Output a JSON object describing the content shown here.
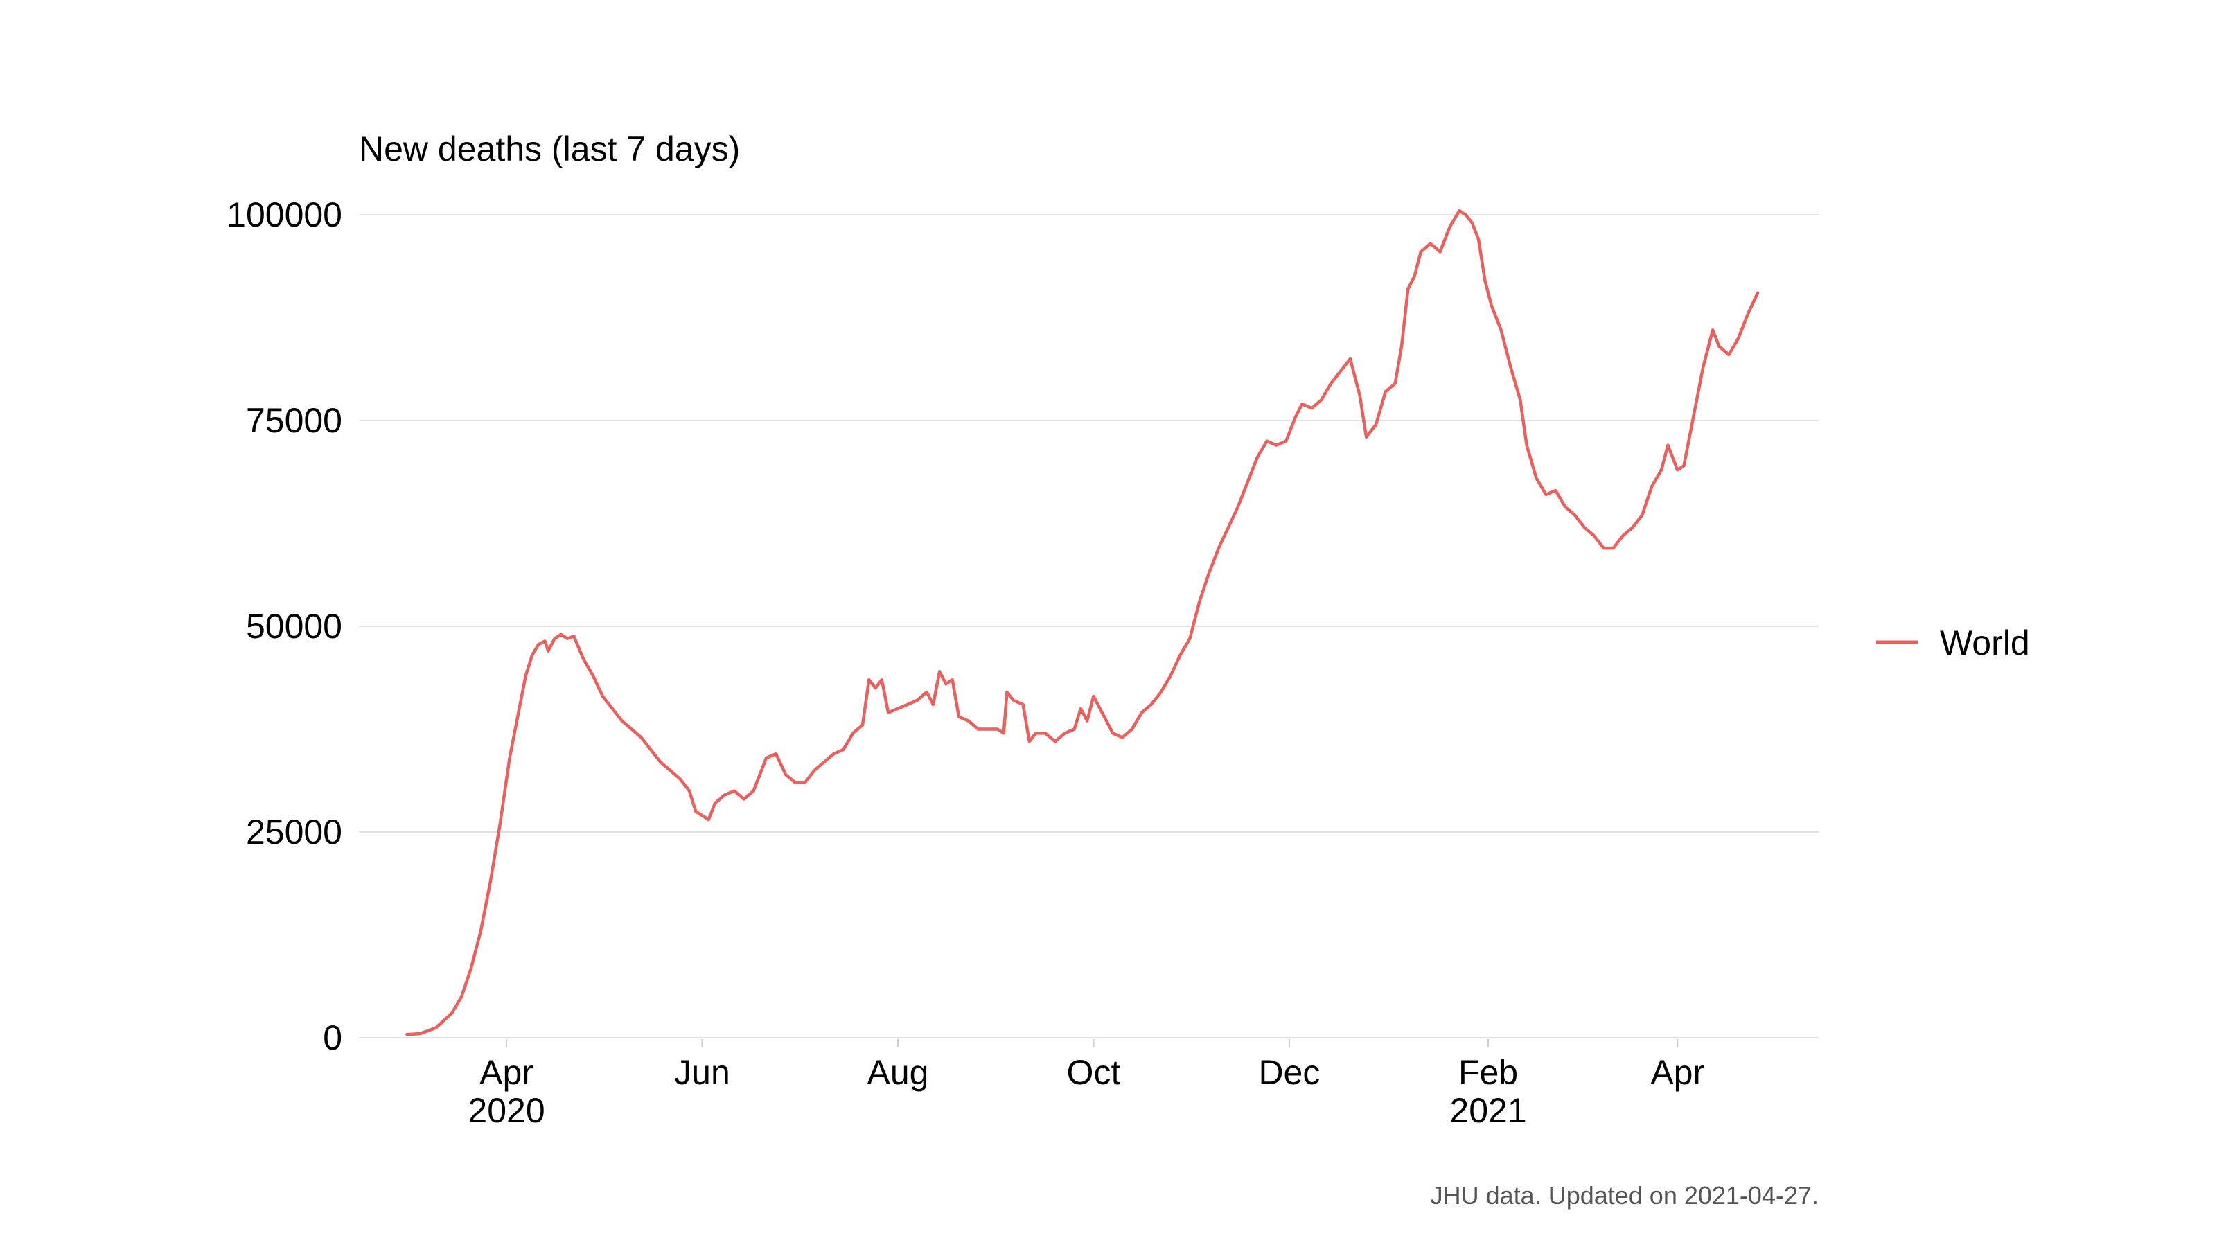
{
  "chart_data": {
    "type": "line",
    "title": "",
    "ylabel": "New deaths (last 7 days)",
    "xlabel": "",
    "ylim": [
      0,
      100000
    ],
    "yticks": [
      0,
      25000,
      50000,
      75000,
      100000
    ],
    "ytick_labels": [
      "0",
      "25000",
      "50000",
      "75000",
      "100000"
    ],
    "xlim": [
      "2020-02-15",
      "2021-05-15"
    ],
    "xticks": [
      {
        "date": "2020-04-01",
        "label": [
          "Apr",
          "2020"
        ]
      },
      {
        "date": "2020-06-01",
        "label": [
          "Jun"
        ]
      },
      {
        "date": "2020-08-01",
        "label": [
          "Aug"
        ]
      },
      {
        "date": "2020-10-01",
        "label": [
          "Oct"
        ]
      },
      {
        "date": "2020-12-01",
        "label": [
          "Dec"
        ]
      },
      {
        "date": "2021-02-01",
        "label": [
          "Feb",
          "2021"
        ]
      },
      {
        "date": "2021-04-01",
        "label": [
          "Apr"
        ]
      }
    ],
    "grid": true,
    "legend_position": "right",
    "series": [
      {
        "name": "World",
        "color": "#E8615E",
        "points": [
          [
            "2020-03-01",
            400
          ],
          [
            "2020-03-05",
            500
          ],
          [
            "2020-03-10",
            1200
          ],
          [
            "2020-03-15",
            3000
          ],
          [
            "2020-03-18",
            5000
          ],
          [
            "2020-03-21",
            8500
          ],
          [
            "2020-03-24",
            13000
          ],
          [
            "2020-03-27",
            19000
          ],
          [
            "2020-03-30",
            26000
          ],
          [
            "2020-04-02",
            34000
          ],
          [
            "2020-04-05",
            40000
          ],
          [
            "2020-04-07",
            44000
          ],
          [
            "2020-04-09",
            46500
          ],
          [
            "2020-04-11",
            47800
          ],
          [
            "2020-04-13",
            48200
          ],
          [
            "2020-04-14",
            47000
          ],
          [
            "2020-04-16",
            48500
          ],
          [
            "2020-04-18",
            49000
          ],
          [
            "2020-04-20",
            48500
          ],
          [
            "2020-04-22",
            48800
          ],
          [
            "2020-04-25",
            46000
          ],
          [
            "2020-04-28",
            44000
          ],
          [
            "2020-05-01",
            41500
          ],
          [
            "2020-05-04",
            40000
          ],
          [
            "2020-05-07",
            38500
          ],
          [
            "2020-05-10",
            37500
          ],
          [
            "2020-05-13",
            36500
          ],
          [
            "2020-05-16",
            35000
          ],
          [
            "2020-05-19",
            33500
          ],
          [
            "2020-05-22",
            32500
          ],
          [
            "2020-05-25",
            31500
          ],
          [
            "2020-05-28",
            30000
          ],
          [
            "2020-05-30",
            27500
          ],
          [
            "2020-06-01",
            27000
          ],
          [
            "2020-06-03",
            26500
          ],
          [
            "2020-06-05",
            28500
          ],
          [
            "2020-06-08",
            29500
          ],
          [
            "2020-06-11",
            30000
          ],
          [
            "2020-06-14",
            29000
          ],
          [
            "2020-06-17",
            30000
          ],
          [
            "2020-06-19",
            32000
          ],
          [
            "2020-06-21",
            34000
          ],
          [
            "2020-06-24",
            34500
          ],
          [
            "2020-06-27",
            32000
          ],
          [
            "2020-06-30",
            31000
          ],
          [
            "2020-07-03",
            31000
          ],
          [
            "2020-07-06",
            32500
          ],
          [
            "2020-07-09",
            33500
          ],
          [
            "2020-07-12",
            34500
          ],
          [
            "2020-07-15",
            35000
          ],
          [
            "2020-07-18",
            37000
          ],
          [
            "2020-07-21",
            38000
          ],
          [
            "2020-07-23",
            43500
          ],
          [
            "2020-07-25",
            42500
          ],
          [
            "2020-07-27",
            43500
          ],
          [
            "2020-07-29",
            39500
          ],
          [
            "2020-08-01",
            40000
          ],
          [
            "2020-08-04",
            40500
          ],
          [
            "2020-08-07",
            41000
          ],
          [
            "2020-08-10",
            42000
          ],
          [
            "2020-08-12",
            40500
          ],
          [
            "2020-08-14",
            44500
          ],
          [
            "2020-08-16",
            43000
          ],
          [
            "2020-08-18",
            43500
          ],
          [
            "2020-08-20",
            39000
          ],
          [
            "2020-08-23",
            38500
          ],
          [
            "2020-08-26",
            37500
          ],
          [
            "2020-08-29",
            37500
          ],
          [
            "2020-09-01",
            37500
          ],
          [
            "2020-09-03",
            37000
          ],
          [
            "2020-09-04",
            42000
          ],
          [
            "2020-09-06",
            41000
          ],
          [
            "2020-09-09",
            40500
          ],
          [
            "2020-09-11",
            36000
          ],
          [
            "2020-09-13",
            37000
          ],
          [
            "2020-09-16",
            37000
          ],
          [
            "2020-09-19",
            36000
          ],
          [
            "2020-09-22",
            37000
          ],
          [
            "2020-09-25",
            37500
          ],
          [
            "2020-09-27",
            40000
          ],
          [
            "2020-09-29",
            38500
          ],
          [
            "2020-10-01",
            41500
          ],
          [
            "2020-10-03",
            40000
          ],
          [
            "2020-10-05",
            38500
          ],
          [
            "2020-10-07",
            37000
          ],
          [
            "2020-10-10",
            36500
          ],
          [
            "2020-10-13",
            37500
          ],
          [
            "2020-10-16",
            39500
          ],
          [
            "2020-10-19",
            40500
          ],
          [
            "2020-10-22",
            42000
          ],
          [
            "2020-10-25",
            44000
          ],
          [
            "2020-10-28",
            46500
          ],
          [
            "2020-10-31",
            48500
          ],
          [
            "2020-11-03",
            53000
          ],
          [
            "2020-11-06",
            56500
          ],
          [
            "2020-11-09",
            59500
          ],
          [
            "2020-11-12",
            62000
          ],
          [
            "2020-11-15",
            64500
          ],
          [
            "2020-11-18",
            67500
          ],
          [
            "2020-11-21",
            70500
          ],
          [
            "2020-11-24",
            72500
          ],
          [
            "2020-11-27",
            72000
          ],
          [
            "2020-11-30",
            72500
          ],
          [
            "2020-12-03",
            75500
          ],
          [
            "2020-12-05",
            77000
          ],
          [
            "2020-12-08",
            76500
          ],
          [
            "2020-12-11",
            77500
          ],
          [
            "2020-12-14",
            79500
          ],
          [
            "2020-12-17",
            81000
          ],
          [
            "2020-12-20",
            82500
          ],
          [
            "2020-12-23",
            78000
          ],
          [
            "2020-12-25",
            73000
          ],
          [
            "2020-12-28",
            74500
          ],
          [
            "2020-12-31",
            78500
          ],
          [
            "2021-01-03",
            79500
          ],
          [
            "2021-01-05",
            84000
          ],
          [
            "2021-01-07",
            91000
          ],
          [
            "2021-01-09",
            92500
          ],
          [
            "2021-01-11",
            95500
          ],
          [
            "2021-01-14",
            96500
          ],
          [
            "2021-01-17",
            95500
          ],
          [
            "2021-01-20",
            98500
          ],
          [
            "2021-01-23",
            100500
          ],
          [
            "2021-01-25",
            100000
          ],
          [
            "2021-01-27",
            99000
          ],
          [
            "2021-01-29",
            97000
          ],
          [
            "2021-01-31",
            92000
          ],
          [
            "2021-02-02",
            89000
          ],
          [
            "2021-02-05",
            86000
          ],
          [
            "2021-02-08",
            81500
          ],
          [
            "2021-02-11",
            77500
          ],
          [
            "2021-02-13",
            72000
          ],
          [
            "2021-02-16",
            68000
          ],
          [
            "2021-02-19",
            66000
          ],
          [
            "2021-02-22",
            66500
          ],
          [
            "2021-02-25",
            64500
          ],
          [
            "2021-02-28",
            63500
          ],
          [
            "2021-03-03",
            62000
          ],
          [
            "2021-03-06",
            61000
          ],
          [
            "2021-03-09",
            59500
          ],
          [
            "2021-03-12",
            59500
          ],
          [
            "2021-03-15",
            61000
          ],
          [
            "2021-03-18",
            62000
          ],
          [
            "2021-03-21",
            63500
          ],
          [
            "2021-03-24",
            67000
          ],
          [
            "2021-03-27",
            69000
          ],
          [
            "2021-03-29",
            72000
          ],
          [
            "2021-04-01",
            69000
          ],
          [
            "2021-04-03",
            69500
          ],
          [
            "2021-04-06",
            75500
          ],
          [
            "2021-04-09",
            81500
          ],
          [
            "2021-04-12",
            86000
          ],
          [
            "2021-04-14",
            84000
          ],
          [
            "2021-04-17",
            83000
          ],
          [
            "2021-04-20",
            85000
          ],
          [
            "2021-04-23",
            88000
          ],
          [
            "2021-04-26",
            90500
          ]
        ]
      }
    ],
    "caption": "JHU data. Updated on 2021-04-27."
  }
}
